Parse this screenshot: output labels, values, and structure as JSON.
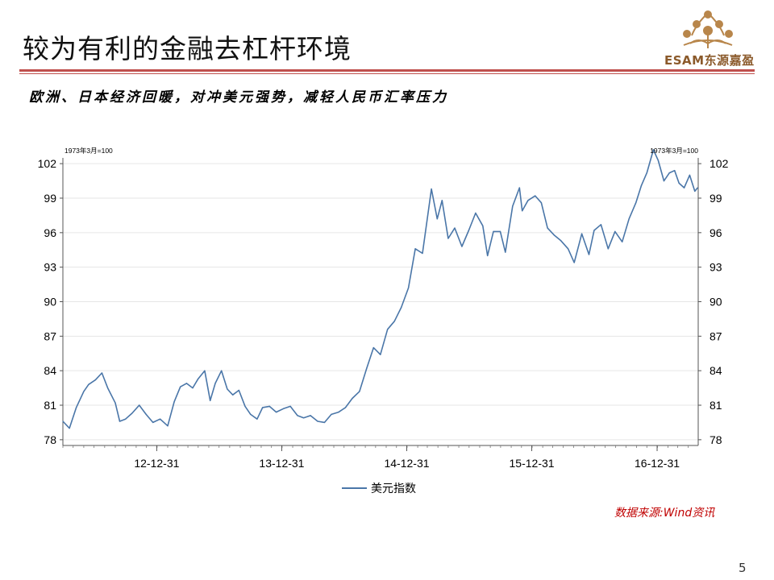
{
  "slide": {
    "title": "较为有利的金融去杠杆环境",
    "subtitle": "欧洲、日本经济回暖，对冲美元强势，减轻人民币汇率压力",
    "source": "数据来源:Wind资讯",
    "page_number": "5"
  },
  "logo": {
    "text": "ESAM东源嘉盈",
    "color": "#b8864b",
    "icon": "ornamental-tree-icon"
  },
  "colors": {
    "accent_rule": "#c0504d",
    "series_line": "#4a76a8",
    "source_text": "#c00000"
  },
  "chart_data": {
    "type": "line",
    "unit_left": "1973年3月=100",
    "unit_right": "1973年3月=100",
    "ylim": [
      77.5,
      102.5
    ],
    "yticks": [
      78,
      81,
      84,
      87,
      90,
      93,
      96,
      99,
      102
    ],
    "xlim": [
      "2012-04-01",
      "2017-04-30"
    ],
    "xtick_labels": [
      "12-12-31",
      "13-12-31",
      "14-12-31",
      "15-12-31",
      "16-12-31"
    ],
    "xtick_dates": [
      "2012-12-31",
      "2013-12-31",
      "2014-12-31",
      "2015-12-31",
      "2016-12-31"
    ],
    "grid": true,
    "legend_position": "bottom-center",
    "series": [
      {
        "name": "美元指数",
        "color": "#4a76a8",
        "x": [
          "2012-04-01",
          "2012-04-20",
          "2012-05-10",
          "2012-06-01",
          "2012-06-15",
          "2012-07-05",
          "2012-07-24",
          "2012-08-10",
          "2012-09-01",
          "2012-09-14",
          "2012-10-01",
          "2012-10-20",
          "2012-11-10",
          "2012-11-30",
          "2012-12-20",
          "2013-01-10",
          "2013-02-01",
          "2013-02-20",
          "2013-03-10",
          "2013-03-28",
          "2013-04-15",
          "2013-05-01",
          "2013-05-20",
          "2013-06-05",
          "2013-06-20",
          "2013-07-08",
          "2013-07-25",
          "2013-08-10",
          "2013-08-28",
          "2013-09-15",
          "2013-10-01",
          "2013-10-20",
          "2013-11-05",
          "2013-11-25",
          "2013-12-15",
          "2014-01-05",
          "2014-01-25",
          "2014-02-15",
          "2014-03-05",
          "2014-03-25",
          "2014-04-15",
          "2014-05-05",
          "2014-05-25",
          "2014-06-15",
          "2014-07-05",
          "2014-07-25",
          "2014-08-15",
          "2014-09-05",
          "2014-09-25",
          "2014-10-15",
          "2014-11-05",
          "2014-11-25",
          "2014-12-15",
          "2015-01-05",
          "2015-01-25",
          "2015-02-15",
          "2015-03-13",
          "2015-03-30",
          "2015-04-13",
          "2015-05-01",
          "2015-05-20",
          "2015-06-10",
          "2015-06-30",
          "2015-07-20",
          "2015-08-10",
          "2015-08-24",
          "2015-09-10",
          "2015-09-30",
          "2015-10-15",
          "2015-11-05",
          "2015-11-25",
          "2015-12-03",
          "2015-12-20",
          "2016-01-10",
          "2016-01-28",
          "2016-02-15",
          "2016-03-05",
          "2016-03-25",
          "2016-04-15",
          "2016-05-03",
          "2016-05-25",
          "2016-06-15",
          "2016-06-30",
          "2016-07-20",
          "2016-08-10",
          "2016-08-30",
          "2016-09-20",
          "2016-10-10",
          "2016-10-30",
          "2016-11-15",
          "2016-12-01",
          "2016-12-20",
          "2017-01-03",
          "2017-01-20",
          "2017-02-05",
          "2017-02-20",
          "2017-03-05",
          "2017-03-20",
          "2017-04-05",
          "2017-04-20",
          "2017-04-28"
        ],
        "y": [
          79.6,
          79.0,
          80.8,
          82.2,
          82.8,
          83.2,
          83.8,
          82.5,
          81.2,
          79.6,
          79.8,
          80.3,
          81.0,
          80.2,
          79.5,
          79.8,
          79.2,
          81.3,
          82.6,
          82.9,
          82.5,
          83.3,
          84.0,
          81.4,
          82.9,
          84.0,
          82.4,
          81.9,
          82.3,
          80.9,
          80.2,
          79.8,
          80.8,
          80.9,
          80.4,
          80.7,
          80.9,
          80.1,
          79.9,
          80.1,
          79.6,
          79.5,
          80.2,
          80.4,
          80.8,
          81.6,
          82.2,
          84.2,
          86.0,
          85.4,
          87.6,
          88.3,
          89.5,
          91.2,
          94.6,
          94.2,
          99.8,
          97.2,
          98.8,
          95.5,
          96.4,
          94.8,
          96.2,
          97.7,
          96.6,
          94.0,
          96.1,
          96.1,
          94.3,
          98.3,
          99.9,
          97.9,
          98.8,
          99.2,
          98.6,
          96.4,
          95.8,
          95.3,
          94.6,
          93.4,
          95.9,
          94.1,
          96.2,
          96.7,
          94.6,
          96.1,
          95.2,
          97.2,
          98.6,
          100.1,
          101.2,
          103.2,
          102.3,
          100.5,
          101.2,
          101.4,
          100.3,
          99.9,
          101.0,
          99.6,
          99.9
        ]
      }
    ],
    "legend": [
      "美元指数"
    ]
  }
}
